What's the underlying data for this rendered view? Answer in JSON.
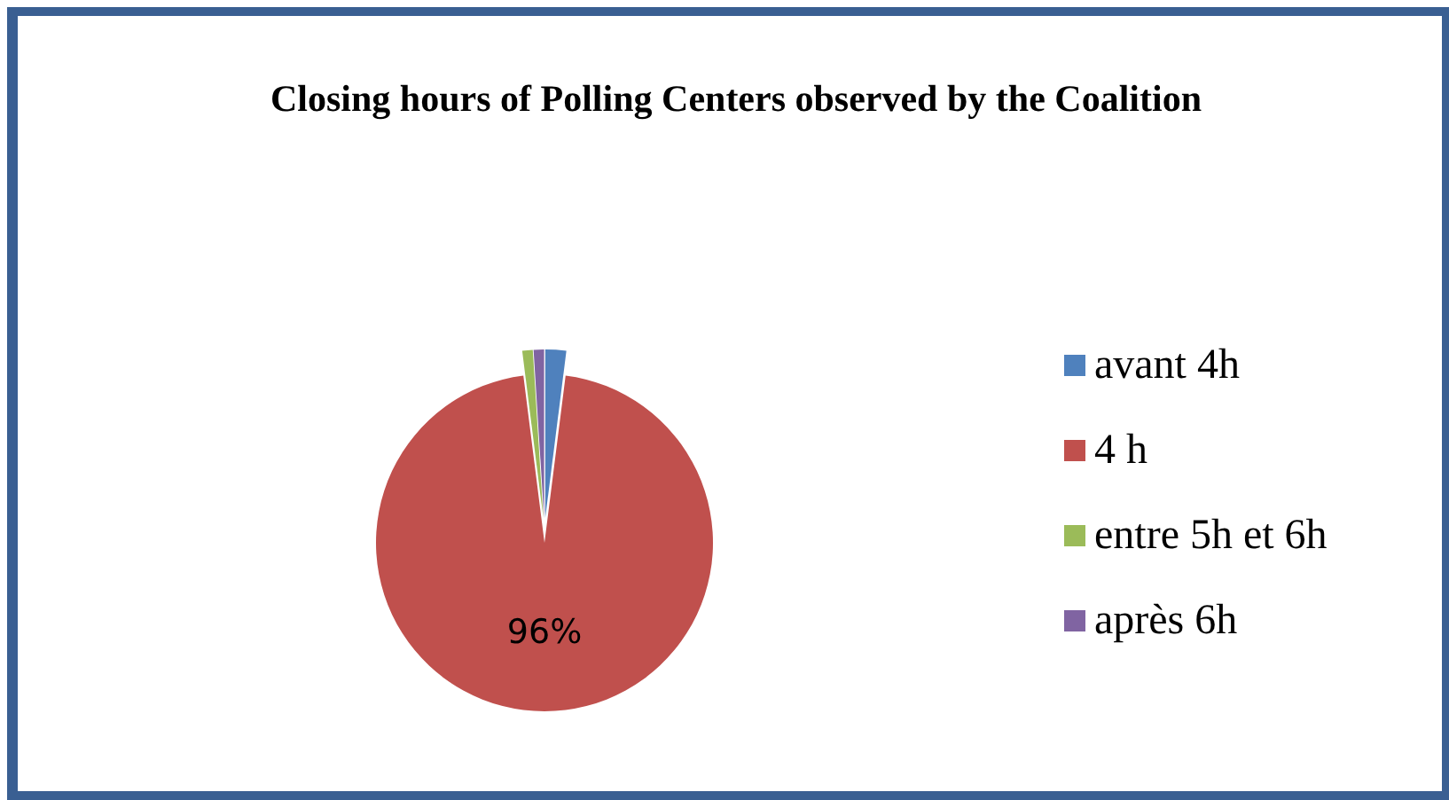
{
  "chart_data": {
    "type": "pie",
    "title": "Closing hours of Polling Centers observed by the Coalition",
    "categories": [
      "avant 4h",
      "4 h",
      "entre 5h et 6h",
      "après 6h"
    ],
    "values": [
      2,
      96,
      1,
      1
    ],
    "colors": [
      "#4f81bd",
      "#c0504d",
      "#9bbb59",
      "#8064a2"
    ],
    "value_labels": [
      null,
      "96%",
      null,
      null
    ],
    "legend": "right"
  }
}
